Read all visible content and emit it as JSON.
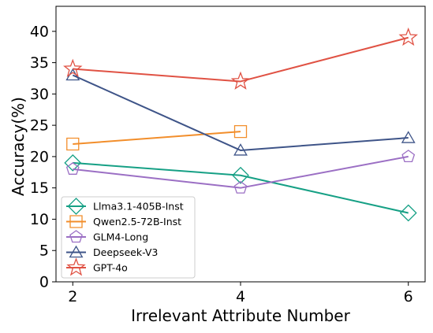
{
  "chart_data": {
    "type": "line",
    "title": "",
    "xlabel": "Irrelevant Attribute Number",
    "ylabel": "Accuracy(%)",
    "x": [
      2,
      4,
      6
    ],
    "xticks": [
      "2",
      "4",
      "6"
    ],
    "yticks": [
      "0",
      "5",
      "10",
      "15",
      "20",
      "25",
      "30",
      "35",
      "40"
    ],
    "ylim": [
      0,
      44
    ],
    "xlim": [
      1.8,
      6.2
    ],
    "grid": false,
    "legend_position": "lower-left",
    "series": [
      {
        "name": "Llma3.1-405B-Inst",
        "x": [
          2,
          4,
          6
        ],
        "values": [
          19,
          17,
          11
        ],
        "color": "#16a085",
        "marker": "diamond"
      },
      {
        "name": "Qwen2.5-72B-Inst",
        "x": [
          2,
          4
        ],
        "values": [
          22,
          24
        ],
        "color": "#f28e2b",
        "marker": "square"
      },
      {
        "name": "GLM4-Long",
        "x": [
          2,
          4,
          6
        ],
        "values": [
          18,
          15,
          20
        ],
        "color": "#9b6fc4",
        "marker": "pentagon"
      },
      {
        "name": "Deepseek-V3",
        "x": [
          2,
          4,
          6
        ],
        "values": [
          33,
          21,
          23
        ],
        "color": "#3e5488",
        "marker": "triangle"
      },
      {
        "name": "GPT-4o",
        "x": [
          2,
          4,
          6
        ],
        "values": [
          34,
          32,
          39
        ],
        "color": "#e05244",
        "marker": "star"
      }
    ]
  }
}
